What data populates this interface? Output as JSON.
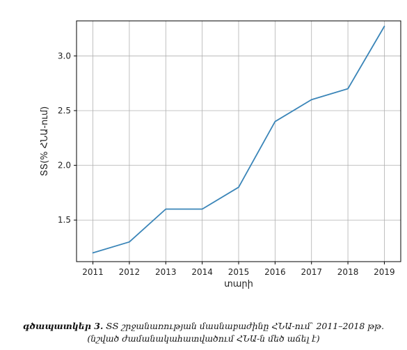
{
  "chart_data": {
    "type": "line",
    "x": [
      2011,
      2012,
      2013,
      2014,
      2015,
      2016,
      2017,
      2018,
      2019
    ],
    "series": [
      {
        "values": [
          1.2,
          1.3,
          1.6,
          1.6,
          1.8,
          2.4,
          2.6,
          2.7,
          3.27
        ],
        "color": "#3a85b8"
      }
    ],
    "xlabel": "տարի",
    "ylabel": "ՏՏ(% ՀՆԱ-ում)",
    "xlim": [
      2010.55,
      2019.45
    ],
    "ylim": [
      1.12,
      3.32
    ],
    "yticks": [
      1.5,
      2.0,
      2.5,
      3.0
    ],
    "yticklabels": [
      "1.5",
      "2.0",
      "2.5",
      "3.0"
    ],
    "xticks": [
      2011,
      2012,
      2013,
      2014,
      2015,
      2016,
      2017,
      2018,
      2019
    ],
    "xticklabels": [
      "2011",
      "2012",
      "2013",
      "2014",
      "2015",
      "2016",
      "2017",
      "2018",
      "2019"
    ],
    "grid": true,
    "legend": "none"
  },
  "caption": {
    "lead": "գծապատկեր 3.",
    "text": " ՏՏ շրջանառության մասնաբաժինը ՀՆԱ-ում՝ 2011–2018 թթ․ (նշված ժամանակահատվածում ՀՆԱ-ն մեծ աճել է)"
  }
}
